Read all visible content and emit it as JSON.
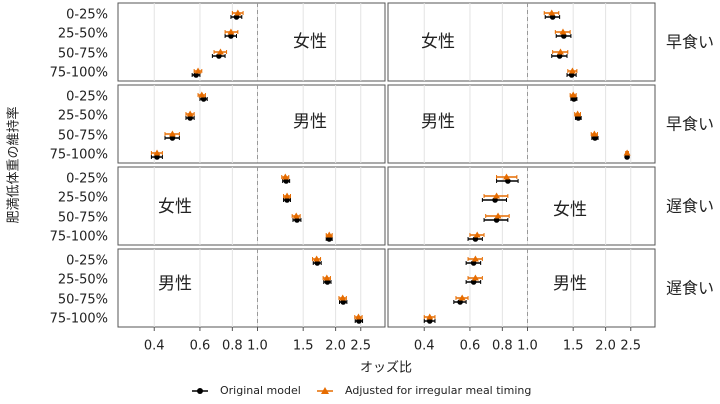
{
  "chart_data": {
    "type": "forest",
    "xlabel": "オッズ比",
    "ylabel": "肥満低体重の維持率",
    "xlim": [
      0.29,
      3.1
    ],
    "log_x": true,
    "xticks": [
      0.4,
      0.6,
      0.8,
      {
        "value": 1,
        "label": "1.0"
      },
      1.5,
      {
        "value": 2,
        "label": "2.0"
      },
      2.5
    ],
    "refline": 1,
    "grid": true,
    "categories": [
      "0-25%",
      "25-50%",
      "50-75%",
      "75-100%"
    ],
    "strips": [
      "早食い",
      "早食い",
      "遅食い",
      "遅食い"
    ],
    "series": [
      {
        "name": "Original model",
        "color": "#000000",
        "marker": "circle"
      },
      {
        "name": "Adjusted for irregular meal timing",
        "color": "#e66c00",
        "marker": "triangle"
      }
    ],
    "panels": [
      {
        "label": "女性",
        "series": [
          {
            "values": [
              0.83,
              0.79,
              0.71,
              0.58
            ],
            "lower": [
              0.79,
              0.75,
              0.67,
              0.56
            ],
            "upper": [
              0.87,
              0.83,
              0.75,
              0.6
            ]
          },
          {
            "values": [
              0.84,
              0.79,
              0.72,
              0.59
            ],
            "lower": [
              0.8,
              0.75,
              0.68,
              0.57
            ],
            "upper": [
              0.88,
              0.84,
              0.76,
              0.61
            ]
          }
        ]
      },
      {
        "label": "女性",
        "series": [
          {
            "values": [
              1.25,
              1.38,
              1.33,
              1.48
            ],
            "lower": [
              1.17,
              1.29,
              1.24,
              1.42
            ],
            "upper": [
              1.33,
              1.47,
              1.42,
              1.54
            ]
          },
          {
            "values": [
              1.24,
              1.37,
              1.34,
              1.49
            ],
            "lower": [
              1.16,
              1.28,
              1.25,
              1.43
            ],
            "upper": [
              1.32,
              1.46,
              1.43,
              1.55
            ]
          }
        ]
      },
      {
        "label": "男性",
        "series": [
          {
            "values": [
              0.62,
              0.55,
              0.47,
              0.41
            ],
            "lower": [
              0.6,
              0.53,
              0.44,
              0.39
            ],
            "upper": [
              0.64,
              0.57,
              0.5,
              0.43
            ]
          },
          {
            "values": [
              0.61,
              0.55,
              0.47,
              0.41
            ],
            "lower": [
              0.59,
              0.53,
              0.44,
              0.39
            ],
            "upper": [
              0.63,
              0.57,
              0.5,
              0.43
            ]
          }
        ]
      },
      {
        "label": "男性",
        "series": [
          {
            "values": [
              1.51,
              1.57,
              1.82,
              2.42
            ],
            "lower": [
              1.47,
              1.53,
              1.77,
              2.39
            ],
            "upper": [
              1.55,
              1.61,
              1.87,
              2.45
            ]
          },
          {
            "values": [
              1.5,
              1.56,
              1.81,
              2.42
            ],
            "lower": [
              1.46,
              1.52,
              1.76,
              2.39
            ],
            "upper": [
              1.54,
              1.6,
              1.86,
              2.45
            ]
          }
        ]
      },
      {
        "label": "女性",
        "series": [
          {
            "values": [
              1.29,
              1.3,
              1.42,
              1.89
            ],
            "lower": [
              1.25,
              1.26,
              1.37,
              1.84
            ],
            "upper": [
              1.33,
              1.34,
              1.47,
              1.94
            ]
          },
          {
            "values": [
              1.28,
              1.3,
              1.41,
              1.89
            ],
            "lower": [
              1.24,
              1.26,
              1.36,
              1.84
            ],
            "upper": [
              1.32,
              1.34,
              1.46,
              1.94
            ]
          }
        ]
      },
      {
        "label": "女性",
        "series": [
          {
            "values": [
              0.84,
              0.75,
              0.76,
              0.63
            ],
            "lower": [
              0.76,
              0.67,
              0.68,
              0.59
            ],
            "upper": [
              0.92,
              0.83,
              0.84,
              0.67
            ]
          },
          {
            "values": [
              0.83,
              0.76,
              0.77,
              0.64
            ],
            "lower": [
              0.76,
              0.68,
              0.69,
              0.6
            ],
            "upper": [
              0.91,
              0.84,
              0.85,
              0.68
            ]
          }
        ]
      },
      {
        "label": "男性",
        "series": [
          {
            "values": [
              1.7,
              1.86,
              2.14,
              2.46
            ],
            "lower": [
              1.64,
              1.8,
              2.07,
              2.38
            ],
            "upper": [
              1.76,
              1.92,
              2.21,
              2.54
            ]
          },
          {
            "values": [
              1.69,
              1.85,
              2.13,
              2.45
            ],
            "lower": [
              1.63,
              1.79,
              2.06,
              2.37
            ],
            "upper": [
              1.75,
              1.91,
              2.2,
              2.53
            ]
          }
        ]
      },
      {
        "label": "男性",
        "series": [
          {
            "values": [
              0.62,
              0.62,
              0.55,
              0.42
            ],
            "lower": [
              0.58,
              0.58,
              0.52,
              0.4
            ],
            "upper": [
              0.66,
              0.66,
              0.58,
              0.44
            ]
          },
          {
            "values": [
              0.63,
              0.63,
              0.56,
              0.42
            ],
            "lower": [
              0.59,
              0.59,
              0.53,
              0.4
            ],
            "upper": [
              0.67,
              0.67,
              0.59,
              0.44
            ]
          }
        ]
      }
    ]
  }
}
